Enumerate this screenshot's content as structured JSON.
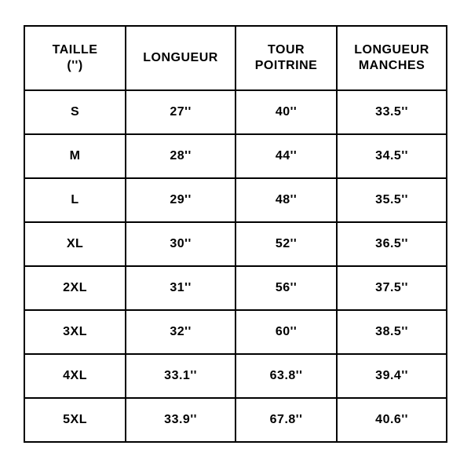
{
  "size_table": {
    "type": "table",
    "background_color": "#ffffff",
    "border_color": "#000000",
    "border_width": 2,
    "text_color": "#000000",
    "font_family": "Arial",
    "header_fontsize": 16,
    "cell_fontsize": 16,
    "font_weight": 700,
    "header_row_height": 82,
    "body_row_height": 56,
    "column_widths_pct": [
      24,
      26,
      24,
      26
    ],
    "columns": [
      "TAILLE\n('')",
      "LONGUEUR",
      "TOUR\nPOITRINE",
      "LONGUEUR\nMANCHES"
    ],
    "columns_line1": [
      "TAILLE",
      "LONGUEUR",
      "TOUR",
      "LONGUEUR"
    ],
    "columns_line2": [
      "('')",
      "",
      "POITRINE",
      "MANCHES"
    ],
    "rows": [
      [
        "S",
        "27''",
        "40''",
        "33.5''"
      ],
      [
        "M",
        "28''",
        "44''",
        "34.5''"
      ],
      [
        "L",
        "29''",
        "48''",
        "35.5''"
      ],
      [
        "XL",
        "30''",
        "52''",
        "36.5''"
      ],
      [
        "2XL",
        "31''",
        "56''",
        "37.5''"
      ],
      [
        "3XL",
        "32''",
        "60''",
        "38.5''"
      ],
      [
        "4XL",
        "33.1''",
        "63.8''",
        "39.4''"
      ],
      [
        "5XL",
        "33.9''",
        "67.8''",
        "40.6''"
      ]
    ]
  }
}
